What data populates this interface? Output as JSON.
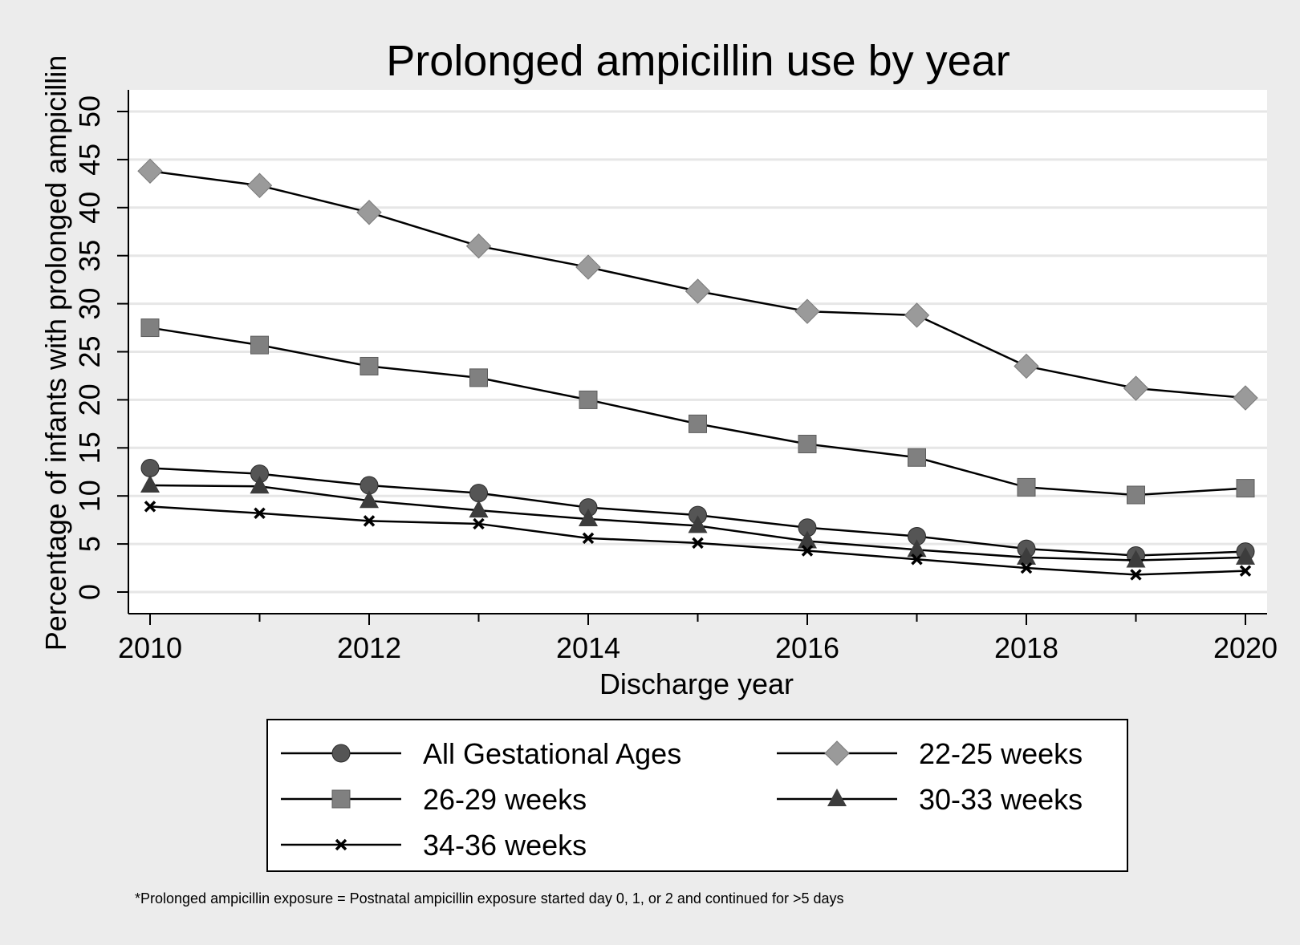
{
  "chart_data": {
    "type": "line",
    "title": "Prolonged ampicillin use by year",
    "xlabel": "Discharge year",
    "ylabel": "Percentage of infants with prolonged ampicillin",
    "xlim": [
      2010,
      2020
    ],
    "ylim": [
      0,
      50
    ],
    "xticks": [
      2010,
      2012,
      2014,
      2016,
      2018,
      2020
    ],
    "yticks": [
      0,
      5,
      10,
      15,
      20,
      25,
      30,
      35,
      40,
      45,
      50
    ],
    "grid": true,
    "legend_position": "bottom",
    "x": [
      2010,
      2011,
      2012,
      2013,
      2014,
      2015,
      2016,
      2017,
      2018,
      2019,
      2020
    ],
    "series": [
      {
        "name": "All Gestational Ages",
        "marker": "circle",
        "color": "#555555",
        "values": [
          12.9,
          12.3,
          11.1,
          10.3,
          8.8,
          8.0,
          6.7,
          5.8,
          4.5,
          3.8,
          4.2
        ]
      },
      {
        "name": "22-25 weeks",
        "marker": "diamond",
        "color": "#9a9a9a",
        "values": [
          43.8,
          42.3,
          39.5,
          36.0,
          33.8,
          31.3,
          29.2,
          28.8,
          23.5,
          21.2,
          20.2
        ]
      },
      {
        "name": "26-29 weeks",
        "marker": "square",
        "color": "#808080",
        "values": [
          27.5,
          25.7,
          23.5,
          22.3,
          20.0,
          17.5,
          15.4,
          14.0,
          10.9,
          10.1,
          10.8
        ]
      },
      {
        "name": "30-33 weeks",
        "marker": "triangle",
        "color": "#3c3c3c",
        "values": [
          11.1,
          11.0,
          9.5,
          8.5,
          7.6,
          6.9,
          5.3,
          4.4,
          3.6,
          3.3,
          3.6
        ]
      },
      {
        "name": "34-36 weeks",
        "marker": "x",
        "color": "#000000",
        "values": [
          8.9,
          8.2,
          7.4,
          7.1,
          5.6,
          5.1,
          4.3,
          3.4,
          2.5,
          1.8,
          2.2
        ]
      }
    ],
    "footnote": "*Prolonged ampicillin exposure = Postnatal ampicillin exposure started day 0, 1, or 2 and continued for >5 days"
  }
}
